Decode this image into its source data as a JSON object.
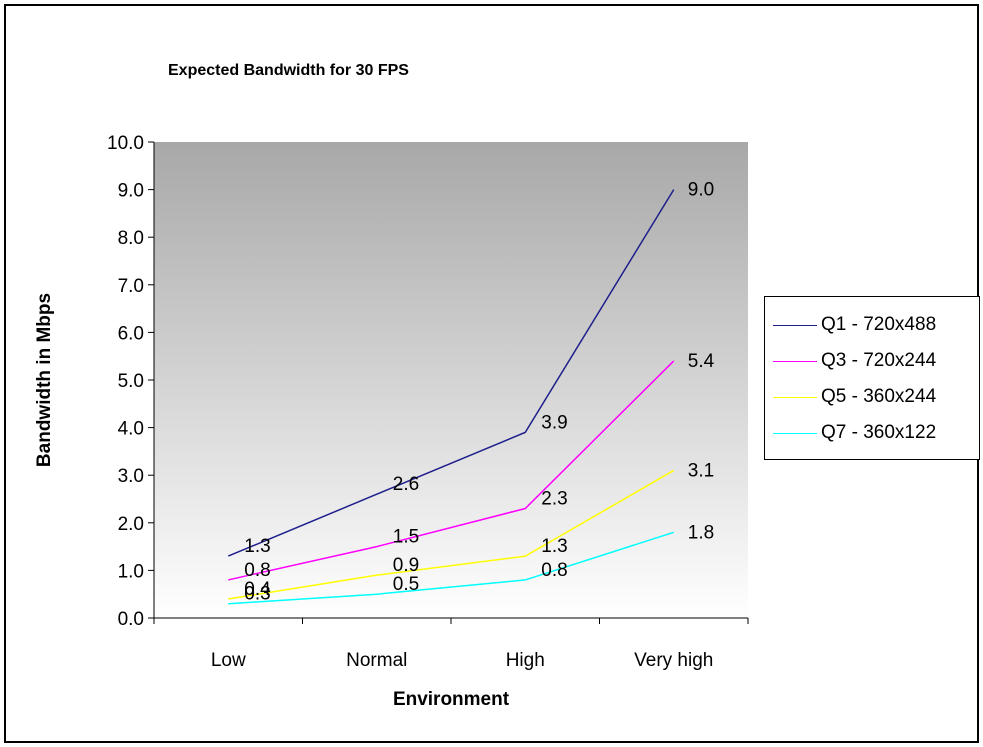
{
  "chart_data": {
    "type": "line",
    "title": "Expected Bandwidth for 30 FPS",
    "xlabel": "Environment",
    "ylabel": "Bandwidth in Mbps",
    "categories": [
      "Low",
      "Normal",
      "High",
      "Very high"
    ],
    "ylim": [
      0,
      10
    ],
    "yticks": [
      "0.0",
      "1.0",
      "2.0",
      "3.0",
      "4.0",
      "5.0",
      "6.0",
      "7.0",
      "8.0",
      "9.0",
      "10.0"
    ],
    "series": [
      {
        "name": "Q1 - 720x488",
        "color": "#1f1f8c",
        "values": [
          1.3,
          2.6,
          3.9,
          9.0
        ],
        "labels": [
          "1.3",
          "2.6",
          "3.9",
          "9.0"
        ]
      },
      {
        "name": "Q3 - 720x244",
        "color": "#ff00ff",
        "values": [
          0.8,
          1.5,
          2.3,
          5.4
        ],
        "labels": [
          "0.8",
          "1.5",
          "2.3",
          "5.4"
        ]
      },
      {
        "name": "Q5 - 360x244",
        "color": "#ffff00",
        "values": [
          0.4,
          0.9,
          1.3,
          3.1
        ],
        "labels": [
          "0.4",
          "0.9",
          "1.3",
          "3.1"
        ]
      },
      {
        "name": "Q7 - 360x122",
        "color": "#00ffff",
        "values": [
          0.3,
          0.5,
          0.8,
          1.8
        ],
        "labels": [
          "0.3",
          "0.5",
          "0.8",
          "1.8"
        ]
      }
    ],
    "plot_background": "gray-to-white vertical gradient",
    "grid": false,
    "legend_position": "right"
  }
}
